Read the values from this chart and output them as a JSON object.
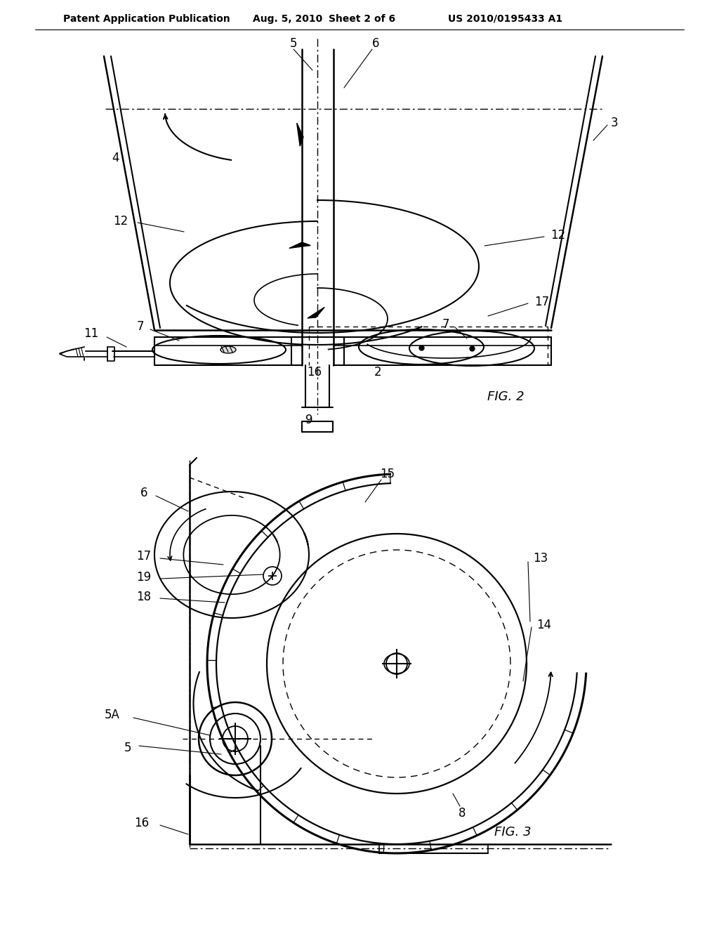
{
  "bg_color": "#ffffff",
  "header_left": "Patent Application Publication",
  "header_date": "Aug. 5, 2010",
  "header_sheet": "Sheet 2 of 6",
  "header_patent": "US 2010/0195433 A1",
  "fig2_label": "FIG. 2",
  "fig3_label": "FIG. 3"
}
